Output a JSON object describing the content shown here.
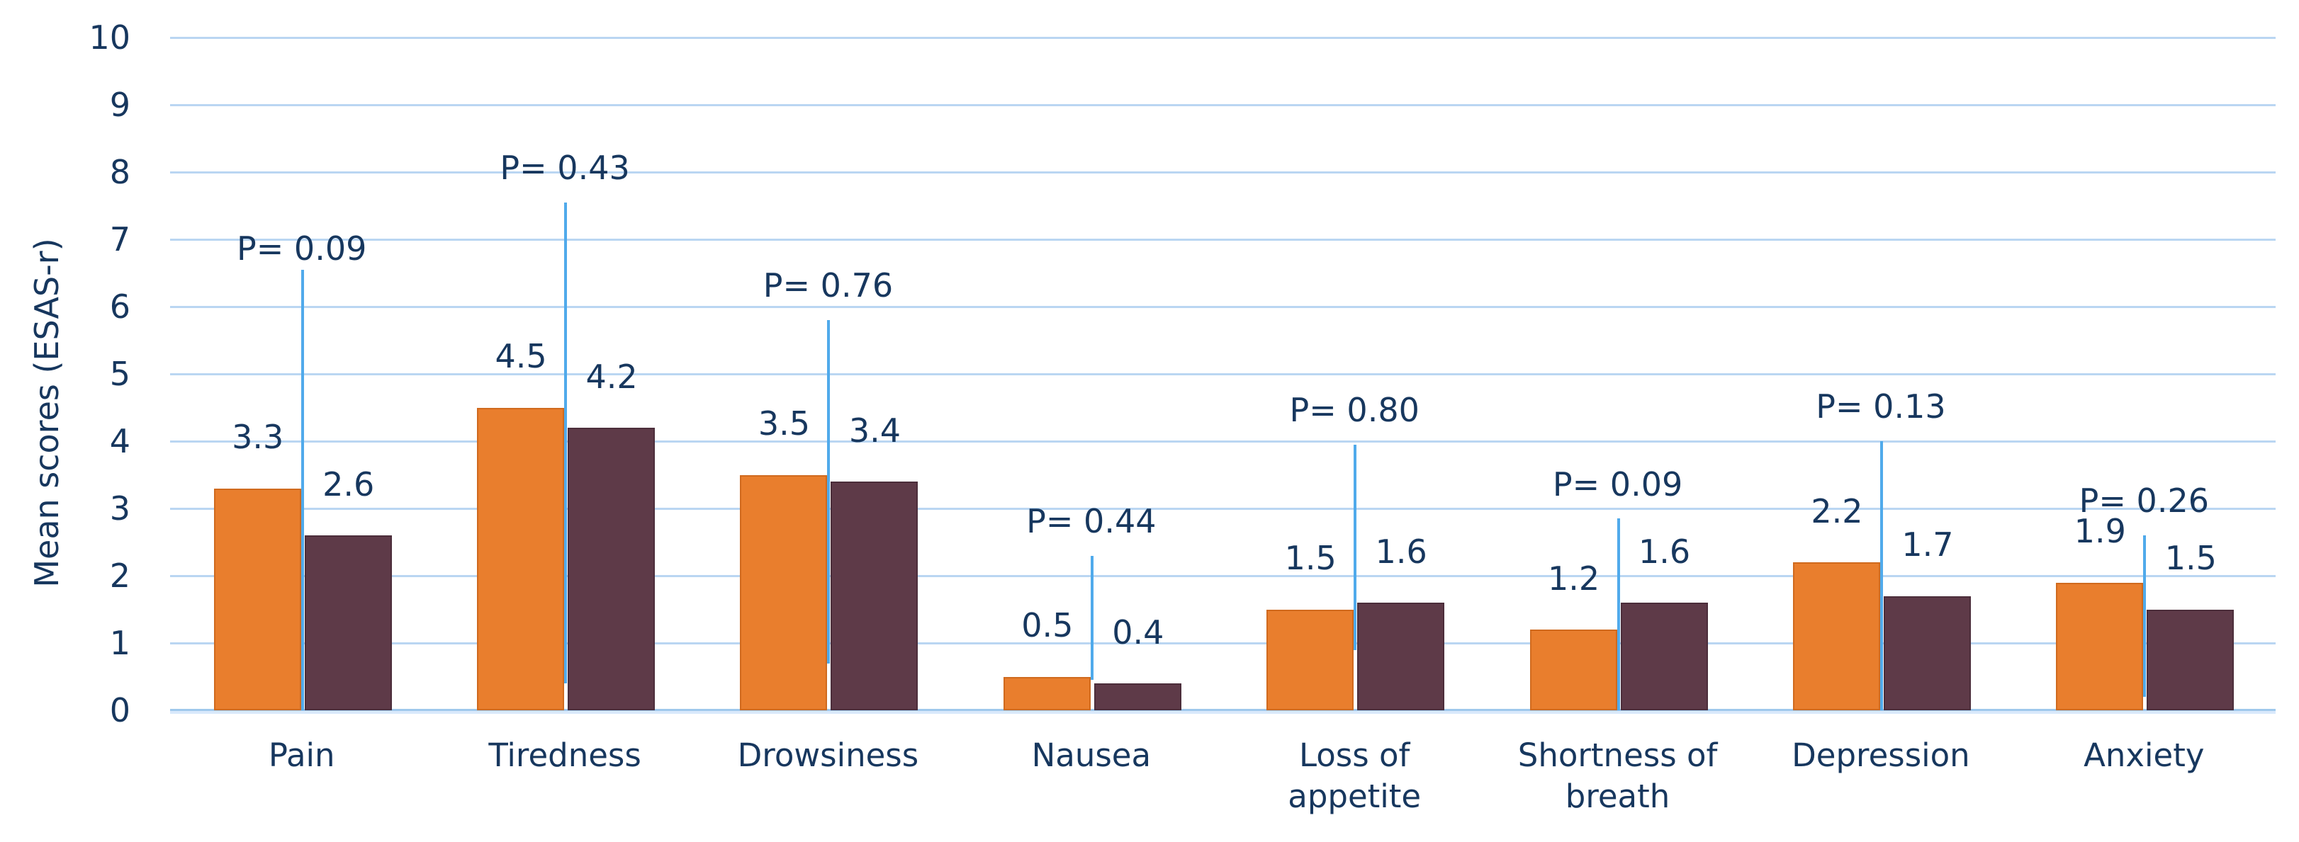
{
  "chart_data": {
    "type": "bar",
    "title": "",
    "xlabel": "",
    "ylabel": "Mean scores (ESAS-r)",
    "ylim": [
      0,
      10
    ],
    "ytick_labels": [
      "0",
      "1",
      "2",
      "3",
      "4",
      "5",
      "6",
      "7",
      "8",
      "9",
      "10"
    ],
    "grid": "horizontal",
    "legend": "none",
    "categories": [
      "Pain",
      "Tiredness",
      "Drowsiness",
      "Nausea",
      "Loss of\nappetite",
      "Shortness of\nbreath",
      "Depression",
      "Anxiety"
    ],
    "series": [
      {
        "name": "series-1-orange",
        "color": "#E97E2D",
        "values": [
          3.3,
          4.5,
          3.5,
          0.5,
          1.5,
          1.2,
          2.2,
          1.9
        ]
      },
      {
        "name": "series-2-maroon",
        "color": "#5E3A48",
        "values": [
          2.6,
          4.2,
          3.4,
          0.4,
          1.6,
          1.6,
          1.7,
          1.5
        ]
      }
    ],
    "value_labels": [
      [
        "3.3",
        "2.6"
      ],
      [
        "4.5",
        "4.2"
      ],
      [
        "3.5",
        "3.4"
      ],
      [
        "0.5",
        "0.4"
      ],
      [
        "1.5",
        "1.6"
      ],
      [
        "1.2",
        "1.6"
      ],
      [
        "2.2",
        "1.7"
      ],
      [
        "1.9",
        "1.5"
      ]
    ],
    "annotations": [
      {
        "text": "P= 0.09",
        "text_bottom_y": 6.6,
        "line_top_y": 6.55,
        "line_bottom_y": 0
      },
      {
        "text": "P= 0.43",
        "text_bottom_y": 7.8,
        "line_top_y": 7.55,
        "line_bottom_y": 0.4
      },
      {
        "text": "P= 0.76",
        "text_bottom_y": 6.05,
        "line_top_y": 5.8,
        "line_bottom_y": 0.7
      },
      {
        "text": "P= 0.44",
        "text_bottom_y": 2.55,
        "line_top_y": 2.3,
        "line_bottom_y": 0.45
      },
      {
        "text": "P= 0.80",
        "text_bottom_y": 4.2,
        "line_top_y": 3.95,
        "line_bottom_y": 0.9
      },
      {
        "text": "P= 0.09",
        "text_bottom_y": 3.1,
        "line_top_y": 2.85,
        "line_bottom_y": 0
      },
      {
        "text": "P= 0.13",
        "text_bottom_y": 4.25,
        "line_top_y": 4.0,
        "line_bottom_y": 0
      },
      {
        "text": "P= 0.26",
        "text_bottom_y": 2.85,
        "line_top_y": 2.6,
        "line_bottom_y": 0.2
      }
    ],
    "colors": {
      "text": "#17375E",
      "gridline": "#BAD6F2",
      "axis_line": "#9FC8EC",
      "error_line": "#50AAEB",
      "background": "#FFFFFF"
    }
  }
}
